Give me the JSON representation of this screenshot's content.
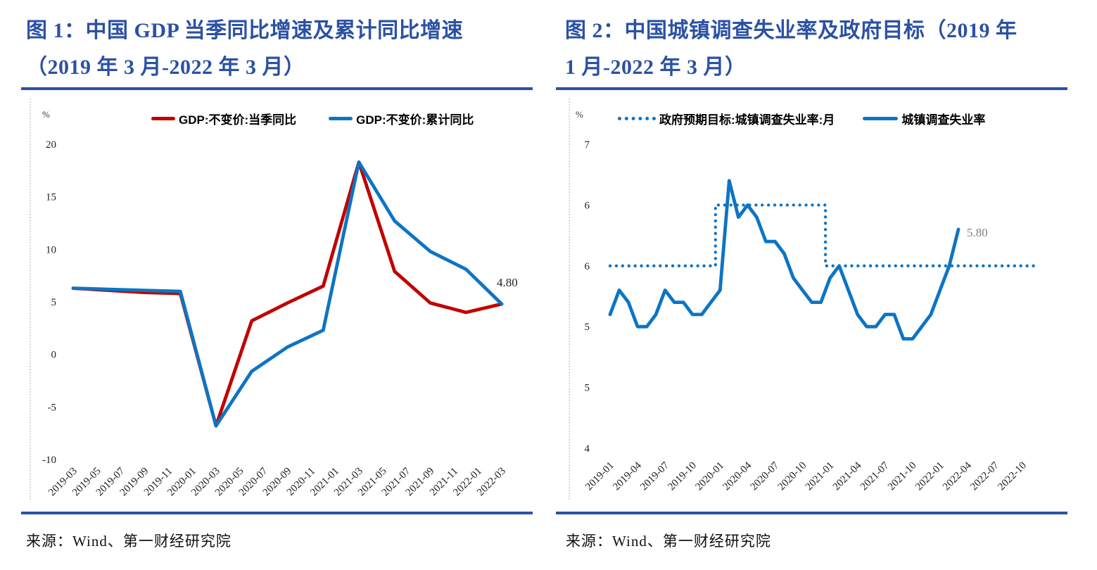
{
  "colors": {
    "title_blue": "#2b51a4",
    "rule_blue": "#2b51a8",
    "series_red": "#c00000",
    "series_blue": "#0d74c4",
    "end_label_gray": "#7f7f7f",
    "tick_text": "#1f1f1f"
  },
  "panels": [
    {
      "title_line1": "图 1：中国 GDP 当季同比增速及累计同比增速",
      "title_line2": "（2019 年 3 月-2022 年 3 月）",
      "unit": "%",
      "source": "来源：Wind、第一财经研究院"
    },
    {
      "title_line1": "图 2：中国城镇调查失业率及政府目标（2019 年",
      "title_line2": "1 月-2022 年 3 月）",
      "unit": "%",
      "source": "来源：Wind、第一财经研究院"
    }
  ],
  "chart_data": [
    {
      "type": "line",
      "title": "图 1：中国 GDP 当季同比增速及累计同比增速（2019 年 3 月-2022 年 3 月）",
      "unit": "%",
      "grid": false,
      "legend_position": "top",
      "x_axis": {
        "unit": "month index from 2019-03",
        "ticks": [
          {
            "label": "2019-03",
            "x": 0
          },
          {
            "label": "2019-05",
            "x": 2
          },
          {
            "label": "2019-07",
            "x": 4
          },
          {
            "label": "2019-09",
            "x": 6
          },
          {
            "label": "2019-11",
            "x": 8
          },
          {
            "label": "2020-01",
            "x": 10
          },
          {
            "label": "2020-03",
            "x": 12
          },
          {
            "label": "2020-05",
            "x": 14
          },
          {
            "label": "2020-07",
            "x": 16
          },
          {
            "label": "2020-09",
            "x": 18
          },
          {
            "label": "2020-11",
            "x": 20
          },
          {
            "label": "2021-01",
            "x": 22
          },
          {
            "label": "2021-03",
            "x": 24
          },
          {
            "label": "2021-05",
            "x": 26
          },
          {
            "label": "2021-07",
            "x": 28
          },
          {
            "label": "2021-09",
            "x": 30
          },
          {
            "label": "2021-11",
            "x": 32
          },
          {
            "label": "2022-01",
            "x": 34
          },
          {
            "label": "2022-03",
            "x": 36
          }
        ]
      },
      "y_axis": {
        "range": [
          -10,
          20
        ],
        "ticks": [
          {
            "label": "20",
            "value": 20
          },
          {
            "label": "15",
            "value": 15
          },
          {
            "label": "10",
            "value": 10
          },
          {
            "label": "5",
            "value": 5
          },
          {
            "label": "0",
            "value": 0
          },
          {
            "label": "-5",
            "value": -5
          },
          {
            "label": "-10",
            "value": -10
          }
        ]
      },
      "series": [
        {
          "name": "GDP:不变价:当季同比",
          "color": "#c00000",
          "style": "solid",
          "x": [
            0,
            3,
            6,
            9,
            12,
            15,
            18,
            21,
            24,
            27,
            30,
            33,
            36
          ],
          "values": [
            6.3,
            6.1,
            5.9,
            5.8,
            -6.8,
            3.2,
            4.9,
            6.5,
            18.3,
            7.9,
            4.9,
            4.0,
            4.8
          ]
        },
        {
          "name": "GDP:不变价:累计同比",
          "color": "#0d74c4",
          "style": "solid",
          "x": [
            0,
            3,
            6,
            9,
            12,
            15,
            18,
            21,
            24,
            27,
            30,
            33,
            36
          ],
          "values": [
            6.3,
            6.2,
            6.1,
            6.0,
            -6.8,
            -1.6,
            0.7,
            2.3,
            18.3,
            12.7,
            9.8,
            8.1,
            4.8
          ]
        }
      ],
      "end_label": {
        "text": "4.80",
        "color": "#1f1f1f"
      }
    },
    {
      "type": "line",
      "title": "图 2：中国城镇调查失业率及政府目标（2019 年 1 月-2022 年 3 月）",
      "unit": "%",
      "grid": false,
      "legend_position": "top",
      "x_axis": {
        "unit": "month index from 2019-01",
        "ticks": [
          {
            "label": "2019-01",
            "x": 0
          },
          {
            "label": "2019-04",
            "x": 3
          },
          {
            "label": "2019-07",
            "x": 6
          },
          {
            "label": "2019-10",
            "x": 9
          },
          {
            "label": "2020-01",
            "x": 12
          },
          {
            "label": "2020-04",
            "x": 15
          },
          {
            "label": "2020-07",
            "x": 18
          },
          {
            "label": "2020-10",
            "x": 21
          },
          {
            "label": "2021-01",
            "x": 24
          },
          {
            "label": "2021-04",
            "x": 27
          },
          {
            "label": "2021-07",
            "x": 30
          },
          {
            "label": "2021-10",
            "x": 33
          },
          {
            "label": "2022-01",
            "x": 36
          },
          {
            "label": "2022-04",
            "x": 39
          },
          {
            "label": "2022-07",
            "x": 42
          },
          {
            "label": "2022-10",
            "x": 45
          }
        ]
      },
      "y_axis": {
        "range": [
          4.0,
          6.7
        ],
        "note": "tick labels shown as rendered (integer-rounded 0.5-step ticks)",
        "ticks": [
          {
            "label": "7",
            "value": 6.5
          },
          {
            "label": "6",
            "value": 6.0
          },
          {
            "label": "6",
            "value": 5.5
          },
          {
            "label": "5",
            "value": 5.0
          },
          {
            "label": "5",
            "value": 4.5
          },
          {
            "label": "4",
            "value": 4.0
          }
        ]
      },
      "series": [
        {
          "name": "政府预期目标:城镇调查失业率:月",
          "color": "#0d74c4",
          "style": "dotted",
          "points": [
            [
              0,
              5.5
            ],
            [
              11.5,
              5.5
            ],
            [
              11.5,
              6.0
            ],
            [
              23.5,
              6.0
            ],
            [
              23.5,
              5.5
            ],
            [
              46.7,
              5.5
            ]
          ]
        },
        {
          "name": "城镇调查失业率",
          "color": "#0d74c4",
          "style": "solid",
          "x": [
            0,
            1,
            2,
            3,
            4,
            5,
            6,
            7,
            8,
            9,
            10,
            11,
            12,
            13,
            14,
            15,
            16,
            17,
            18,
            19,
            20,
            21,
            22,
            23,
            24,
            25,
            26,
            27,
            28,
            29,
            30,
            31,
            32,
            33,
            34,
            35,
            36,
            37,
            38
          ],
          "values": [
            5.1,
            5.3,
            5.2,
            5.0,
            5.0,
            5.1,
            5.3,
            5.2,
            5.2,
            5.1,
            5.1,
            5.2,
            5.3,
            6.2,
            5.9,
            6.0,
            5.9,
            5.7,
            5.7,
            5.6,
            5.4,
            5.3,
            5.2,
            5.2,
            5.4,
            5.5,
            5.3,
            5.1,
            5.0,
            5.0,
            5.1,
            5.1,
            4.9,
            4.9,
            5.0,
            5.1,
            5.3,
            5.5,
            5.8
          ]
        }
      ],
      "end_label": {
        "text": "5.80",
        "color": "#7f7f7f"
      }
    }
  ]
}
